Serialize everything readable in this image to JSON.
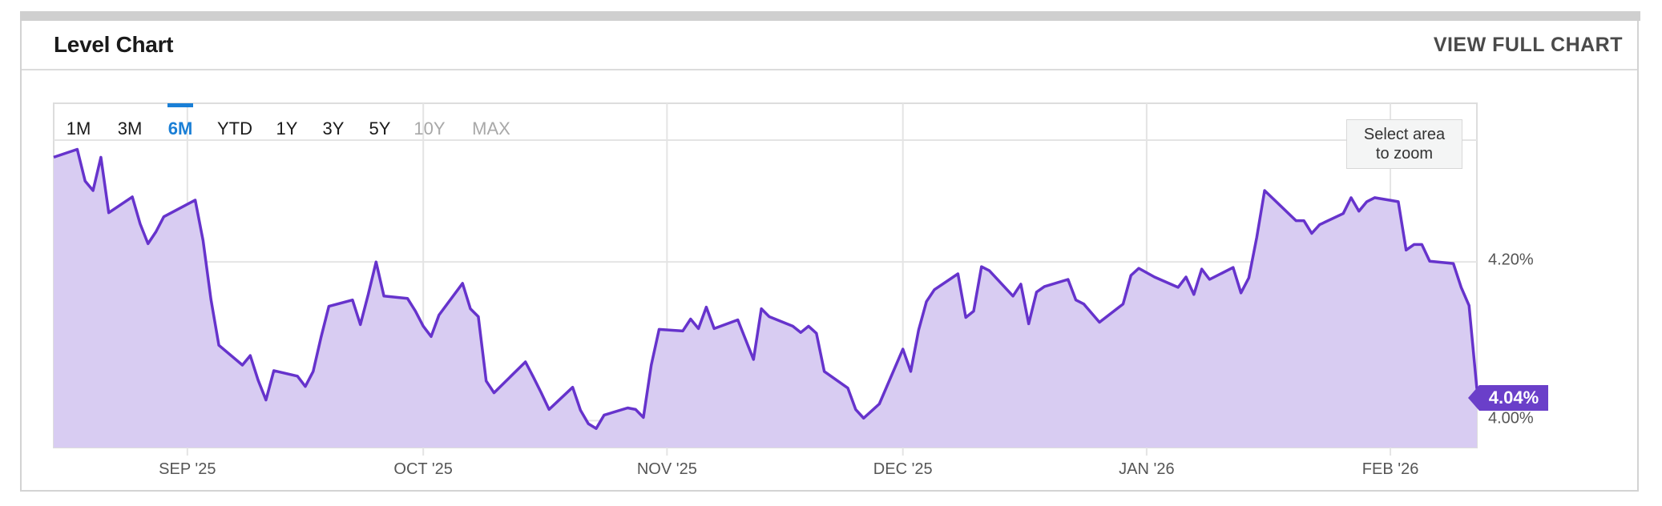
{
  "header": {
    "title": "Level Chart",
    "view_full_label": "VIEW FULL CHART"
  },
  "range_selector": {
    "options": [
      "1M",
      "3M",
      "6M",
      "YTD",
      "1Y",
      "3Y",
      "5Y",
      "10Y",
      "MAX"
    ],
    "active": "6M",
    "disabled": [
      "10Y",
      "MAX"
    ]
  },
  "zoom_hint": {
    "line1": "Select area",
    "line2": "to zoom"
  },
  "last_value_label": "4.04%",
  "colors": {
    "line": "#6633cc",
    "fill": "#d8ccf2",
    "accent": "#1a7fd6",
    "badge": "#6a3fc9"
  },
  "chart_data": {
    "type": "area",
    "title": "Level Chart",
    "xlabel": "",
    "ylabel": "",
    "x_tick_labels": [
      "SEP '25",
      "OCT '25",
      "NOV '25",
      "DEC '25",
      "JAN '26",
      "FEB '26"
    ],
    "x_tick_dates": [
      "2025-09-01",
      "2025-10-01",
      "2025-11-01",
      "2025-12-01",
      "2026-01-01",
      "2026-02-01"
    ],
    "y_tick_labels": [
      "4.00%",
      "4.20%"
    ],
    "y_ticks": [
      4.0,
      4.2
    ],
    "ylim": [
      3.966,
      4.4
    ],
    "xlim": [
      "2025-08-15",
      "2026-02-12"
    ],
    "grid": true,
    "last_value": 4.04,
    "series": [
      {
        "x": [
          "2025-08-15",
          "2025-08-18",
          "2025-08-19",
          "2025-08-20",
          "2025-08-21",
          "2025-08-22",
          "2025-08-25",
          "2025-08-26",
          "2025-08-27",
          "2025-08-28",
          "2025-08-29",
          "2025-09-02",
          "2025-09-03",
          "2025-09-04",
          "2025-09-05",
          "2025-09-08",
          "2025-09-09",
          "2025-09-10",
          "2025-09-11",
          "2025-09-12",
          "2025-09-15",
          "2025-09-16",
          "2025-09-17",
          "2025-09-18",
          "2025-09-19",
          "2025-09-22",
          "2025-09-23",
          "2025-09-24",
          "2025-09-25",
          "2025-09-26",
          "2025-09-29",
          "2025-09-30",
          "2025-10-01",
          "2025-10-02",
          "2025-10-03",
          "2025-10-06",
          "2025-10-07",
          "2025-10-08",
          "2025-10-09",
          "2025-10-10",
          "2025-10-14",
          "2025-10-15",
          "2025-10-16",
          "2025-10-17",
          "2025-10-20",
          "2025-10-21",
          "2025-10-22",
          "2025-10-23",
          "2025-10-24",
          "2025-10-27",
          "2025-10-28",
          "2025-10-29",
          "2025-10-30",
          "2025-10-31",
          "2025-11-03",
          "2025-11-04",
          "2025-11-05",
          "2025-11-06",
          "2025-11-07",
          "2025-11-10",
          "2025-11-12",
          "2025-11-13",
          "2025-11-14",
          "2025-11-17",
          "2025-11-18",
          "2025-11-19",
          "2025-11-20",
          "2025-11-21",
          "2025-11-24",
          "2025-11-25",
          "2025-11-26",
          "2025-11-28",
          "2025-12-01",
          "2025-12-02",
          "2025-12-03",
          "2025-12-04",
          "2025-12-05",
          "2025-12-08",
          "2025-12-09",
          "2025-12-10",
          "2025-12-11",
          "2025-12-12",
          "2025-12-15",
          "2025-12-16",
          "2025-12-17",
          "2025-12-18",
          "2025-12-19",
          "2025-12-22",
          "2025-12-23",
          "2025-12-24",
          "2025-12-26",
          "2025-12-29",
          "2025-12-30",
          "2025-12-31",
          "2026-01-02",
          "2026-01-05",
          "2026-01-06",
          "2026-01-07",
          "2026-01-08",
          "2026-01-09",
          "2026-01-12",
          "2026-01-13",
          "2026-01-14",
          "2026-01-15",
          "2026-01-16",
          "2026-01-20",
          "2026-01-21",
          "2026-01-22",
          "2026-01-23",
          "2026-01-26",
          "2026-01-27",
          "2026-01-28",
          "2026-01-29",
          "2026-01-30",
          "2026-02-02",
          "2026-02-03",
          "2026-02-04",
          "2026-02-05",
          "2026-02-06",
          "2026-02-09",
          "2026-02-10",
          "2026-02-11",
          "2026-02-12"
        ],
        "y": [
          4.332,
          4.342,
          4.302,
          4.29,
          4.332,
          4.262,
          4.282,
          4.248,
          4.223,
          4.238,
          4.257,
          4.278,
          4.227,
          4.153,
          4.095,
          4.07,
          4.082,
          4.051,
          4.026,
          4.063,
          4.056,
          4.043,
          4.062,
          4.105,
          4.144,
          4.152,
          4.121,
          4.159,
          4.2,
          4.157,
          4.154,
          4.138,
          4.119,
          4.106,
          4.133,
          4.173,
          4.141,
          4.131,
          4.05,
          4.035,
          4.074,
          4.055,
          4.035,
          4.014,
          4.042,
          4.013,
          3.996,
          3.99,
          4.007,
          4.016,
          4.014,
          4.004,
          4.07,
          4.115,
          4.113,
          4.128,
          4.116,
          4.143,
          4.116,
          4.127,
          4.077,
          4.141,
          4.131,
          4.119,
          4.111,
          4.119,
          4.11,
          4.062,
          4.041,
          4.014,
          4.003,
          4.021,
          4.09,
          4.062,
          4.114,
          4.15,
          4.165,
          4.185,
          4.13,
          4.138,
          4.194,
          4.189,
          4.157,
          4.172,
          4.122,
          4.162,
          4.169,
          4.178,
          4.152,
          4.147,
          4.124,
          4.147,
          4.183,
          4.192,
          4.181,
          4.168,
          4.181,
          4.159,
          4.191,
          4.178,
          4.193,
          4.161,
          4.18,
          4.231,
          4.29,
          4.252,
          4.252,
          4.236,
          4.247,
          4.261,
          4.281,
          4.264,
          4.276,
          4.281,
          4.276,
          4.215,
          4.222,
          4.222,
          4.201,
          4.198,
          4.168,
          4.145,
          4.04
        ]
      }
    ]
  }
}
